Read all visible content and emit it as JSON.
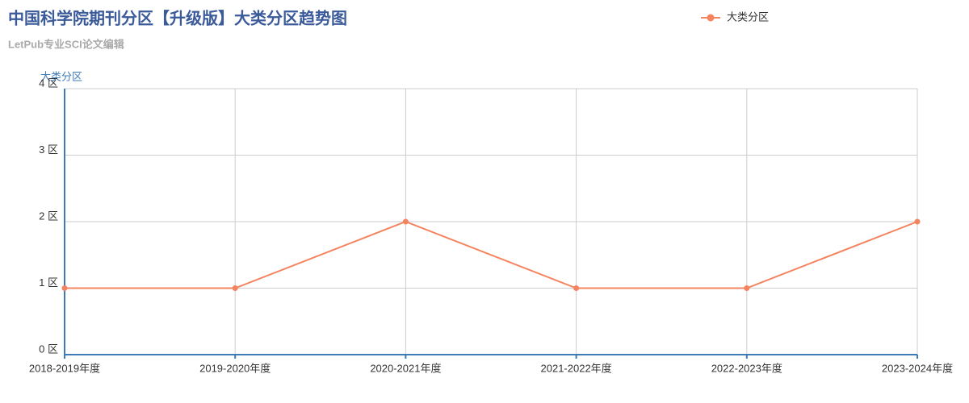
{
  "chart_data": {
    "type": "line",
    "title": "中国科学院期刊分区【升级版】大类分区趋势图",
    "subtitle": "LetPub专业SCI论文编辑",
    "y_label": "大类分区",
    "categories": [
      "2018-2019年度",
      "2019-2020年度",
      "2020-2021年度",
      "2021-2022年度",
      "2022-2023年度",
      "2023-2024年度"
    ],
    "series": [
      {
        "name": "大类分区",
        "color": "#f4845f",
        "values": [
          1,
          1,
          2,
          1,
          1,
          2
        ]
      }
    ],
    "ylim": [
      0,
      4
    ],
    "yticks": [
      {
        "value": 0,
        "label": "0 区"
      },
      {
        "value": 1,
        "label": "1 区"
      },
      {
        "value": 2,
        "label": "2 区"
      },
      {
        "value": 3,
        "label": "3 区"
      },
      {
        "value": 4,
        "label": "4 区"
      }
    ],
    "grid": true,
    "legend": "top-right"
  }
}
